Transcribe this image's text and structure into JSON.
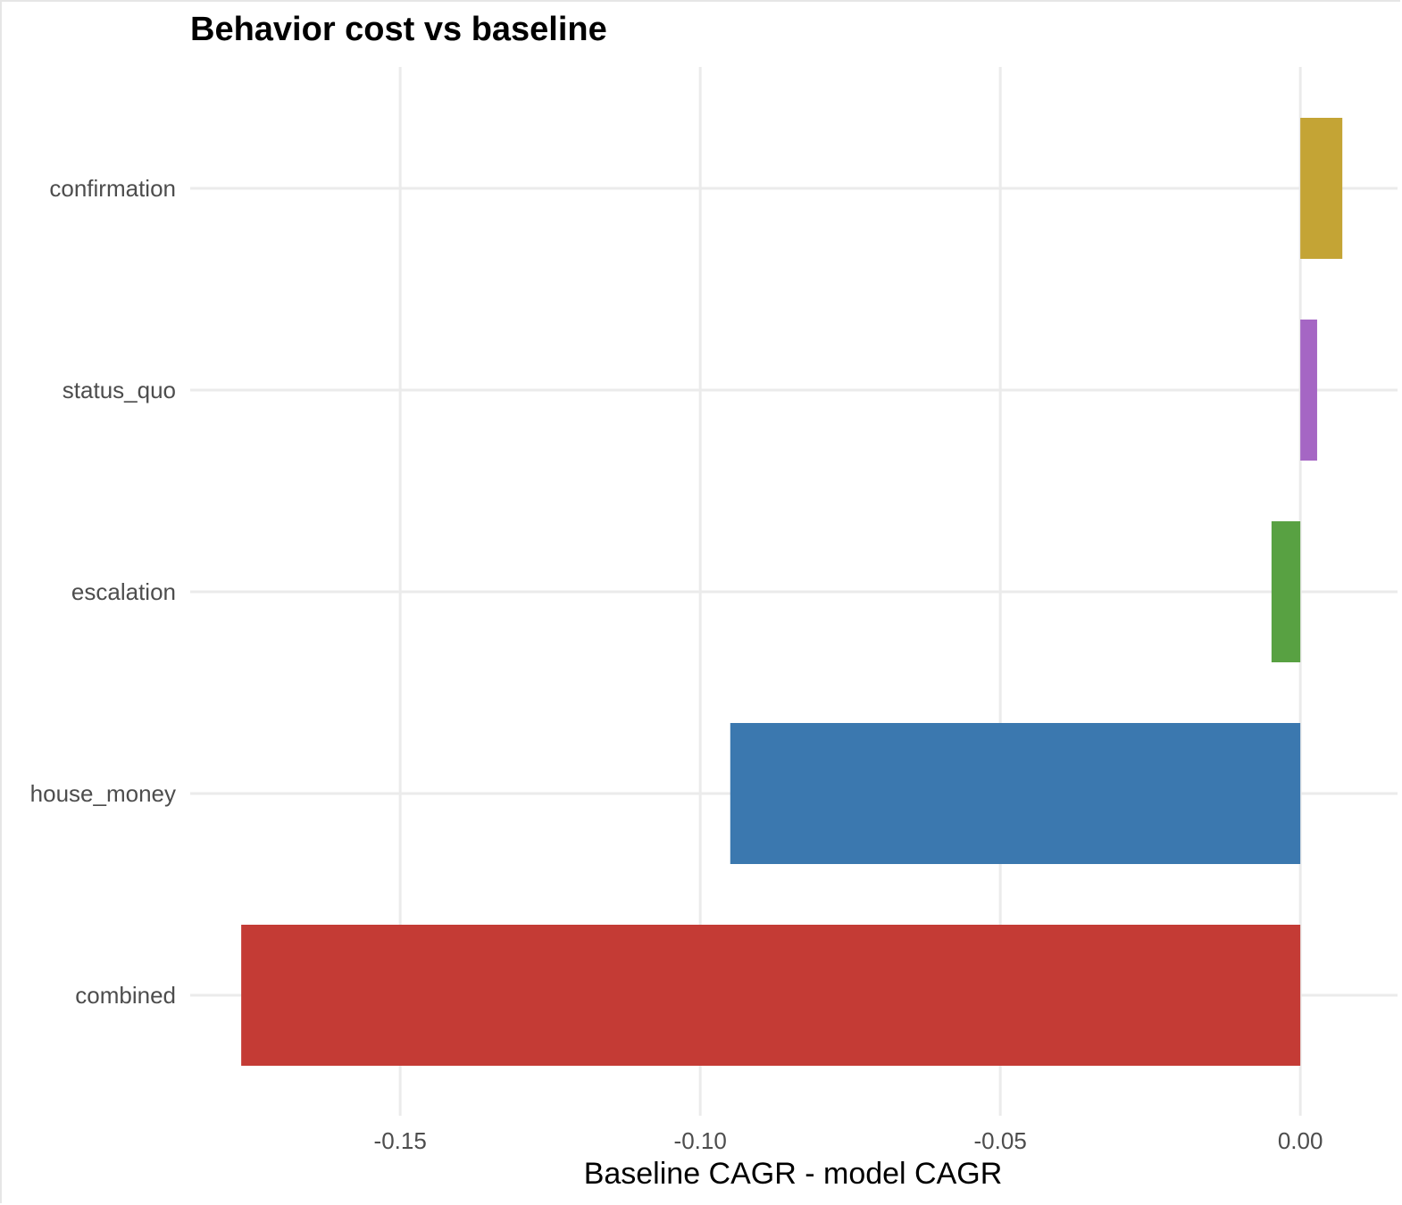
{
  "chart_data": {
    "type": "bar",
    "orientation": "horizontal",
    "title": "Behavior cost vs baseline",
    "xlabel": "Baseline CAGR - model CAGR",
    "ylabel": "",
    "categories": [
      "confirmation",
      "status_quo",
      "escalation",
      "house_money",
      "combined"
    ],
    "values": [
      0.007,
      0.0028,
      -0.0048,
      -0.095,
      -0.1765
    ],
    "colors": [
      "#C4A435",
      "#A566C4",
      "#58A142",
      "#3B78AF",
      "#C43B35"
    ],
    "xlim": [
      -0.185,
      0.0162
    ],
    "xticks": [
      -0.15,
      -0.1,
      -0.05,
      0.0
    ],
    "xtick_labels": [
      "-0.15",
      "-0.10",
      "-0.05",
      "0.00"
    ],
    "grid": true,
    "legend": "none"
  }
}
